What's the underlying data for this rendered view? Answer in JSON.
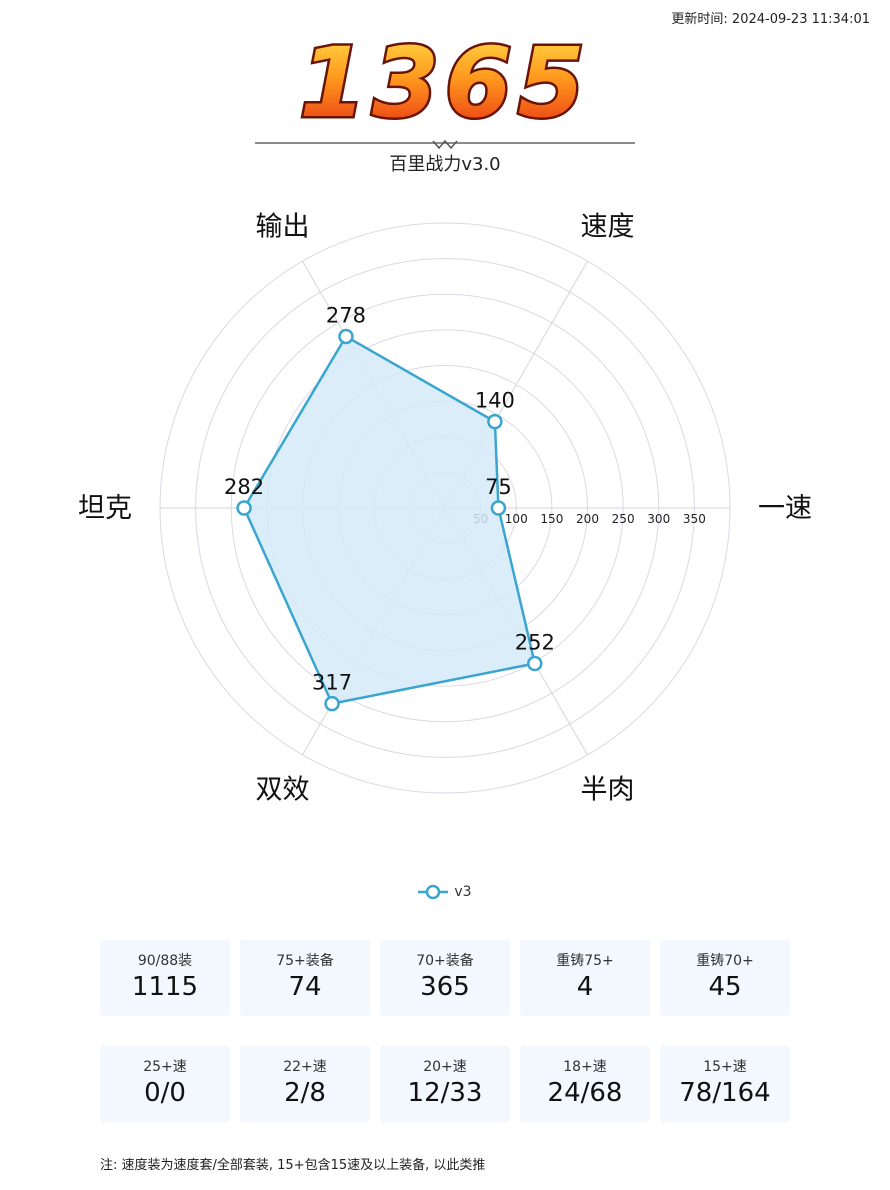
{
  "update_time": "更新时间: 2024-09-23 11:34:01",
  "score": "1365",
  "version_label": "百里战力v3.0",
  "chart_data": {
    "type": "radar",
    "axes": [
      "一速",
      "速度",
      "输出",
      "坦克",
      "双效",
      "半肉"
    ],
    "series": [
      {
        "name": "v3",
        "values": [
          75,
          140,
          278,
          282,
          317,
          252
        ]
      }
    ],
    "rings": [
      50,
      100,
      150,
      200,
      250,
      300,
      350
    ],
    "ring_labels": [
      "50",
      "100",
      "150",
      "200",
      "250",
      "300",
      "350"
    ],
    "rmax": 400,
    "colors": {
      "line": "#3aa6cf",
      "fill": "#d3eaf8",
      "grid": "#ddd8e6"
    },
    "legend_position": "bottom-center"
  },
  "stats_row1": [
    {
      "label": "90/88装",
      "value": "1115"
    },
    {
      "label": "75+装备",
      "value": "74"
    },
    {
      "label": "70+装备",
      "value": "365"
    },
    {
      "label": "重铸75+",
      "value": "4"
    },
    {
      "label": "重铸70+",
      "value": "45"
    }
  ],
  "stats_row2": [
    {
      "label": "25+速",
      "value": "0/0"
    },
    {
      "label": "22+速",
      "value": "2/8"
    },
    {
      "label": "20+速",
      "value": "12/33"
    },
    {
      "label": "18+速",
      "value": "24/68"
    },
    {
      "label": "15+速",
      "value": "78/164"
    }
  ],
  "note": "注: 速度装为速度套/全部套装, 15+包含15速及以上装备, 以此类推"
}
